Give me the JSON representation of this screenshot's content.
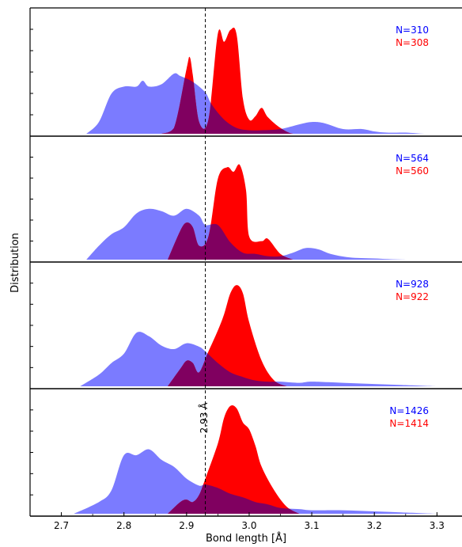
{
  "chart_data": {
    "type": "area",
    "title": "",
    "xlabel": "Bond length [Å]",
    "ylabel": "Distribution",
    "xlim": [
      2.65,
      3.34
    ],
    "x_ticks": [
      "2.7",
      "2.8",
      "2.9",
      "3.0",
      "3.1",
      "3.2",
      "3.3"
    ],
    "reference_line": {
      "x": 2.93,
      "label": "2.93 Å"
    },
    "colors": {
      "blue": "#7b7bff",
      "red": "#ff0000",
      "overlap": "#800060"
    },
    "panels": [
      {
        "ylim": [
          0,
          1.0
        ],
        "series": [
          {
            "name": "N=310",
            "color": "#0000ff",
            "x": [
              2.74,
              2.76,
              2.78,
              2.8,
              2.82,
              2.83,
              2.84,
              2.86,
              2.88,
              2.89,
              2.91,
              2.93,
              2.94,
              2.96,
              2.98,
              3.0,
              3.02,
              3.05,
              3.08,
              3.1,
              3.12,
              3.15,
              3.18,
              3.2,
              3.22,
              3.25,
              3.28,
              3.3
            ],
            "values": [
              0.0,
              0.1,
              0.34,
              0.4,
              0.4,
              0.45,
              0.4,
              0.42,
              0.51,
              0.49,
              0.44,
              0.35,
              0.25,
              0.12,
              0.05,
              0.03,
              0.03,
              0.04,
              0.08,
              0.1,
              0.09,
              0.04,
              0.04,
              0.02,
              0.01,
              0.01,
              0.0,
              0.0
            ]
          },
          {
            "name": "N=308",
            "color": "#ff0000",
            "x": [
              2.86,
              2.88,
              2.9,
              2.905,
              2.91,
              2.92,
              2.935,
              2.95,
              2.96,
              2.97,
              2.98,
              2.99,
              3.0,
              3.01,
              3.02,
              3.03,
              3.05,
              3.07,
              3.1
            ],
            "values": [
              0.0,
              0.05,
              0.55,
              0.65,
              0.5,
              0.1,
              0.12,
              0.85,
              0.78,
              0.88,
              0.84,
              0.3,
              0.12,
              0.15,
              0.22,
              0.14,
              0.05,
              0.0,
              0.0
            ]
          }
        ]
      },
      {
        "ylim": [
          0,
          1.0
        ],
        "series": [
          {
            "name": "N=564",
            "color": "#0000ff",
            "x": [
              2.74,
              2.76,
              2.78,
              2.8,
              2.82,
              2.84,
              2.86,
              2.88,
              2.9,
              2.92,
              2.93,
              2.95,
              2.97,
              2.99,
              3.01,
              3.03,
              3.05,
              3.07,
              3.09,
              3.11,
              3.13,
              3.16,
              3.2,
              3.25,
              3.3
            ],
            "values": [
              0.0,
              0.12,
              0.22,
              0.28,
              0.4,
              0.44,
              0.42,
              0.38,
              0.44,
              0.38,
              0.3,
              0.3,
              0.15,
              0.06,
              0.05,
              0.03,
              0.03,
              0.06,
              0.1,
              0.09,
              0.05,
              0.02,
              0.01,
              0.0,
              0.0
            ]
          },
          {
            "name": "N=560",
            "color": "#ff0000",
            "x": [
              2.87,
              2.89,
              2.9,
              2.91,
              2.92,
              2.935,
              2.95,
              2.965,
              2.975,
              2.985,
              2.995,
              3.0,
              3.02,
              3.03,
              3.05,
              3.07
            ],
            "values": [
              0.0,
              0.25,
              0.32,
              0.28,
              0.12,
              0.2,
              0.7,
              0.8,
              0.76,
              0.82,
              0.6,
              0.2,
              0.16,
              0.18,
              0.05,
              0.0
            ]
          }
        ]
      },
      {
        "ylim": [
          0,
          1.0
        ],
        "series": [
          {
            "name": "N=928",
            "color": "#0000ff",
            "x": [
              2.73,
              2.76,
              2.78,
              2.8,
              2.82,
              2.84,
              2.86,
              2.88,
              2.9,
              2.92,
              2.93,
              2.95,
              2.97,
              2.99,
              3.01,
              3.03,
              3.05,
              3.08,
              3.1,
              3.15,
              3.2,
              3.25,
              3.3
            ],
            "values": [
              0.0,
              0.1,
              0.2,
              0.28,
              0.46,
              0.43,
              0.35,
              0.32,
              0.37,
              0.34,
              0.3,
              0.2,
              0.12,
              0.08,
              0.05,
              0.04,
              0.04,
              0.03,
              0.04,
              0.03,
              0.02,
              0.01,
              0.0
            ]
          },
          {
            "name": "N=922",
            "color": "#ff0000",
            "x": [
              2.87,
              2.89,
              2.9,
              2.91,
              2.92,
              2.935,
              2.95,
              2.96,
              2.97,
              2.98,
              2.99,
              3.0,
              3.02,
              3.04,
              3.06
            ],
            "values": [
              0.0,
              0.15,
              0.22,
              0.2,
              0.12,
              0.3,
              0.48,
              0.62,
              0.8,
              0.87,
              0.8,
              0.55,
              0.22,
              0.05,
              0.0
            ]
          }
        ]
      },
      {
        "ylim": [
          0,
          1.0
        ],
        "series": [
          {
            "name": "N=1426",
            "color": "#0000ff",
            "x": [
              2.72,
              2.76,
              2.78,
              2.8,
              2.82,
              2.84,
              2.86,
              2.88,
              2.9,
              2.92,
              2.93,
              2.95,
              2.97,
              2.99,
              3.01,
              3.03,
              3.05,
              3.08,
              3.1,
              3.15,
              3.2,
              3.25,
              3.3
            ],
            "values": [
              0.0,
              0.1,
              0.2,
              0.5,
              0.5,
              0.55,
              0.46,
              0.4,
              0.3,
              0.24,
              0.25,
              0.22,
              0.17,
              0.14,
              0.1,
              0.08,
              0.05,
              0.04,
              0.03,
              0.03,
              0.02,
              0.01,
              0.0
            ]
          },
          {
            "name": "N=1414",
            "color": "#ff0000",
            "x": [
              2.87,
              2.89,
              2.9,
              2.91,
              2.92,
              2.93,
              2.95,
              2.96,
              2.97,
              2.98,
              2.99,
              3.0,
              3.01,
              3.02,
              3.04,
              3.06,
              3.08
            ],
            "values": [
              0.0,
              0.1,
              0.12,
              0.1,
              0.16,
              0.3,
              0.6,
              0.82,
              0.92,
              0.9,
              0.78,
              0.72,
              0.58,
              0.4,
              0.2,
              0.06,
              0.0
            ]
          }
        ]
      }
    ]
  }
}
